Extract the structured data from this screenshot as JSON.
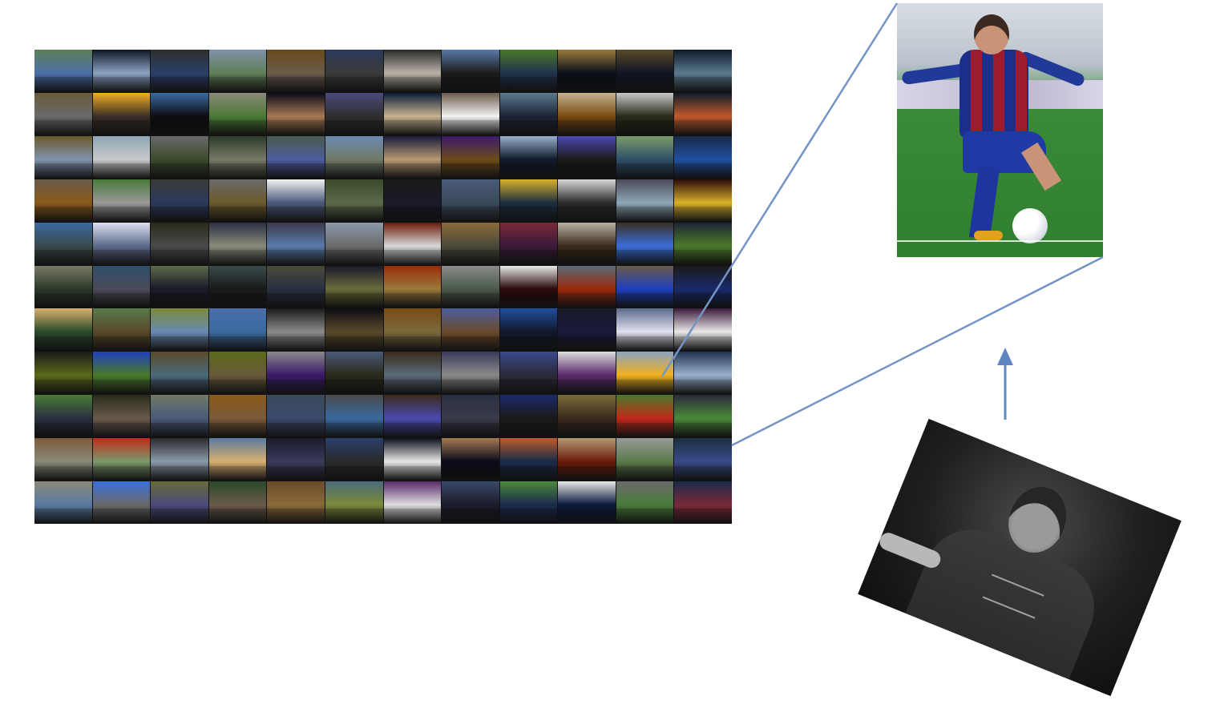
{
  "figure": {
    "description_visible_text": "",
    "mosaic": {
      "rows": 11,
      "cols": 12,
      "tile_theme_colors": [
        "#4b6fa8",
        "#8aa3c2",
        "#2b3f6a",
        "#5f7f57",
        "#6b5b4b",
        "#3a3a3a",
        "#b9b2a6",
        "#1b1b1b",
        "#20324d",
        "#0b0f1a",
        "#101524",
        "#5a7a8e",
        "#6a6a6a",
        "#3b2e26",
        "#0d0d12",
        "#4b7a36",
        "#a67a52",
        "#2f2f2f",
        "#c6b38f",
        "#f2f2f2",
        "#1c2435",
        "#7a4a12",
        "#2a2a1a",
        "#c05a2a",
        "#7f93aa",
        "#c9c9c9",
        "#3b4a2a",
        "#7a7a66",
        "#4d5da0",
        "#6f7a66",
        "#b59a72",
        "#6b4a1a",
        "#0e1a2a",
        "#1a1a1a",
        "#2f4f6a",
        "#1f4f9f",
        "#8a5a1a",
        "#9a9a9a",
        "#2a3a5a",
        "#6a5a2a",
        "#4a5a7a",
        "#5a6a4a",
        "#1a1a2a",
        "#3a4a5a",
        "#1a2f3f",
        "#2a2a2a",
        "#8fa7b7",
        "#d9b02a",
        "#3a4a4a",
        "#5a6a8a",
        "#4a4a4a",
        "#8a8a7a",
        "#5a7aaa",
        "#6a6a6a",
        "#d8d8d8",
        "#4a4a3a",
        "#3a1a3a",
        "#3a2a1a",
        "#3a6fd8",
        "#4a7a2a",
        "#2a3a2a",
        "#4a4a5a",
        "#1a1a2a",
        "#1a1a1a",
        "#2a3040",
        "#6a6a3a",
        "#9a7a3a",
        "#4a5a4a",
        "#2a0a0a",
        "#9a2a0a",
        "#1f3fbf",
        "#1a2a6a",
        "#2a4a2a",
        "#5a4a2a",
        "#6a8ab0",
        "#3a6aa0",
        "#8a8a8a",
        "#5a4a2a",
        "#7a6a3a",
        "#6a4a2a",
        "#10182a",
        "#1a1a3a",
        "#e0e0f0",
        "#e8e8e8",
        "#5a6a1a",
        "#4a7a2a",
        "#4a6a7a",
        "#6a5a3a",
        "#3a1a6a",
        "#2a2a1a",
        "#5a6a7a",
        "#8a8a8a",
        "#2a2a3a",
        "#5a2a6a",
        "#f0b020",
        "#9ab0d0",
        "#2a3040",
        "#6a5a4a",
        "#4a5a7a",
        "#7a5a3a",
        "#3a4a6a",
        "#3a6aa0",
        "#4a4ab0",
        "#3a3a4a",
        "#1a1a1a",
        "#3a2a1a",
        "#c02a1a",
        "#4a8a3a",
        "#8a8a7a",
        "#7a9a6a",
        "#8a9aaa",
        "#d8b070",
        "#3a3a5a",
        "#2a2a2a",
        "#e8e8e8",
        "#0a0a1a",
        "#1a2a4a",
        "#6a1a0a",
        "#5a7a4a",
        "#3a4a8a",
        "#5a7aa0",
        "#6a6a6a",
        "#4a4a7a",
        "#6a5a4a",
        "#8a6a3a",
        "#7a8a3a",
        "#dcdcdc",
        "#1a1a2a",
        "#1a2a4a",
        "#0a1a3a",
        "#4a7a3a",
        "#7a2a3a"
      ]
    },
    "arrow": {
      "direction": "up"
    },
    "colors": {
      "connector": "#7394c6",
      "arrow": "#5f86c3"
    }
  }
}
